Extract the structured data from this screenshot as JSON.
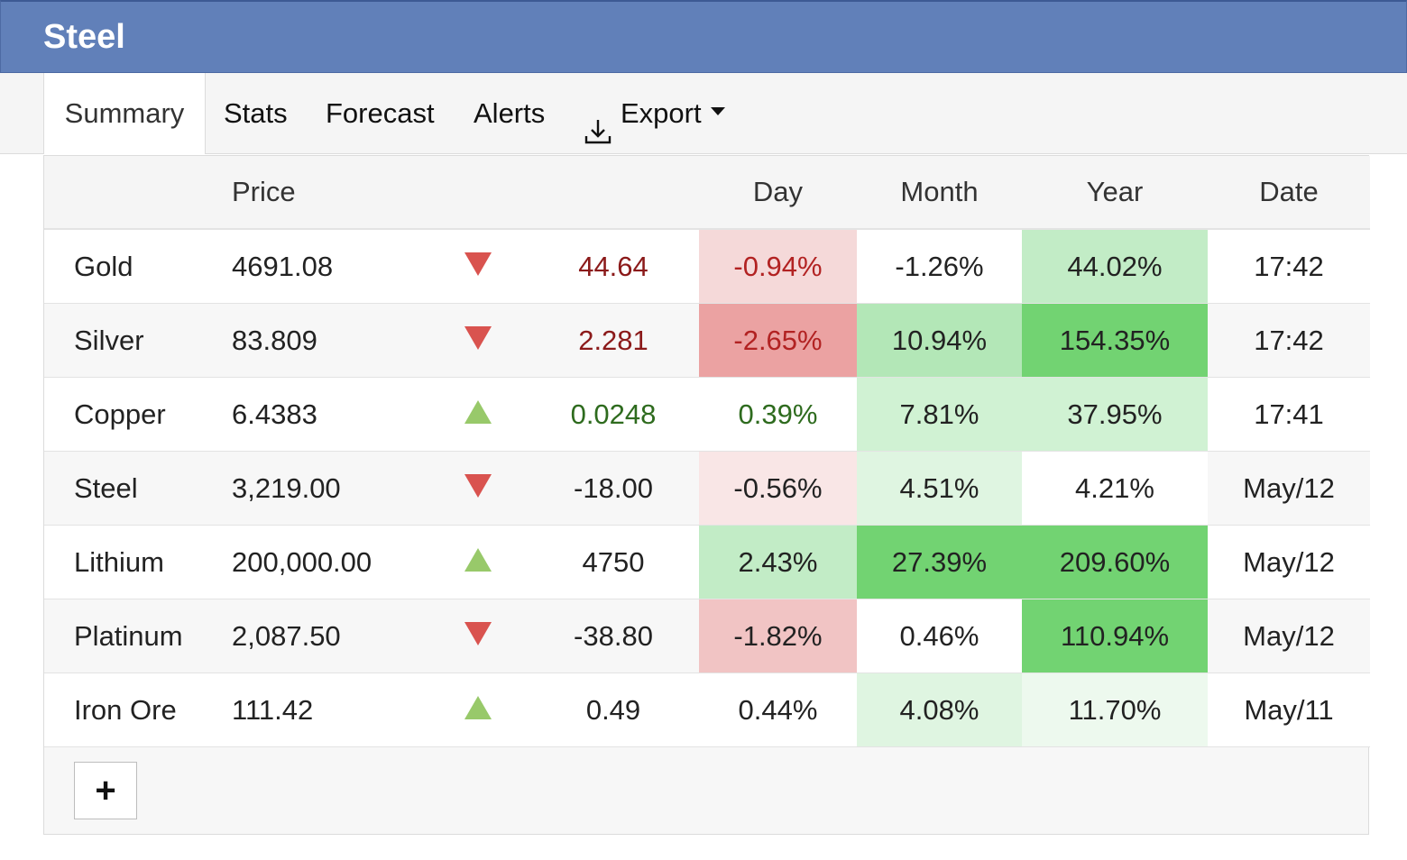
{
  "window": {
    "title": "Steel"
  },
  "tabs": {
    "summary": "Summary",
    "stats": "Stats",
    "forecast": "Forecast",
    "alerts": "Alerts",
    "export": "Export"
  },
  "table": {
    "headers": {
      "name": "",
      "price": "Price",
      "change": "",
      "day": "Day",
      "month": "Month",
      "year": "Year",
      "date": "Date"
    },
    "rows": [
      {
        "name": "Gold",
        "price": "4691.08",
        "direction": "down",
        "change": "44.64",
        "change_color": "#8b1a1a",
        "day": "-0.94%",
        "day_color": "#b22222",
        "day_bg": "#f5d9d9",
        "month": "-1.26%",
        "month_bg": "#ffffff",
        "year": "44.02%",
        "year_bg": "#c2ecc6",
        "date": "17:42"
      },
      {
        "name": "Silver",
        "price": "83.809",
        "direction": "down",
        "change": "2.281",
        "change_color": "#8b1a1a",
        "day": "-2.65%",
        "day_color": "#b22222",
        "day_bg": "#eba2a2",
        "month": "10.94%",
        "month_bg": "#b3e7b7",
        "year": "154.35%",
        "year_bg": "#72d372",
        "date": "17:42"
      },
      {
        "name": "Copper",
        "price": "6.4383",
        "direction": "up",
        "change": "0.0248",
        "change_color": "#2e6b1e",
        "day": "0.39%",
        "day_color": "#2e6b1e",
        "day_bg": "#ffffff",
        "month": "7.81%",
        "month_bg": "#d0f2d3",
        "year": "37.95%",
        "year_bg": "#d0f2d3",
        "date": "17:41"
      },
      {
        "name": "Steel",
        "price": "3,219.00",
        "direction": "down",
        "change": "-18.00",
        "change_color": "#222222",
        "day": "-0.56%",
        "day_color": "#222222",
        "day_bg": "#f9e6e6",
        "month": "4.51%",
        "month_bg": "#dff5e1",
        "year": "4.21%",
        "year_bg": "#ffffff",
        "date": "May/12"
      },
      {
        "name": "Lithium",
        "price": "200,000.00",
        "direction": "up",
        "change": "4750",
        "change_color": "#222222",
        "day": "2.43%",
        "day_color": "#222222",
        "day_bg": "#c2ecc6",
        "month": "27.39%",
        "month_bg": "#72d372",
        "year": "209.60%",
        "year_bg": "#72d372",
        "date": "May/12"
      },
      {
        "name": "Platinum",
        "price": "2,087.50",
        "direction": "down",
        "change": "-38.80",
        "change_color": "#222222",
        "day": "-1.82%",
        "day_color": "#222222",
        "day_bg": "#f1c4c4",
        "month": "0.46%",
        "month_bg": "#ffffff",
        "year": "110.94%",
        "year_bg": "#72d372",
        "date": "May/12"
      },
      {
        "name": "Iron Ore",
        "price": "111.42",
        "direction": "up",
        "change": "0.49",
        "change_color": "#222222",
        "day": "0.44%",
        "day_color": "#222222",
        "day_bg": "#ffffff",
        "month": "4.08%",
        "month_bg": "#dff5e1",
        "year": "11.70%",
        "year_bg": "#edf9ee",
        "date": "May/11"
      }
    ]
  },
  "add_button": {
    "label": "+"
  },
  "colors": {
    "header_bg": "#6180b9",
    "arrow_down": "#d9534f",
    "arrow_up": "#98c96a"
  }
}
